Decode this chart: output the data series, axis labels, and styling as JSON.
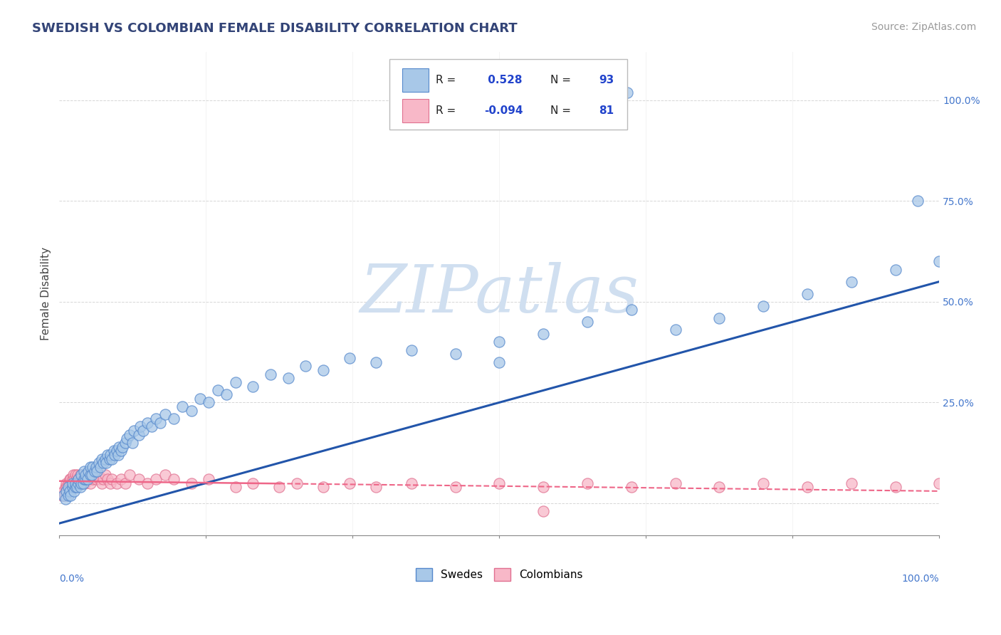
{
  "title": "SWEDISH VS COLOMBIAN FEMALE DISABILITY CORRELATION CHART",
  "source": "Source: ZipAtlas.com",
  "ylabel": "Female Disability",
  "r_swedish": 0.528,
  "n_swedish": 93,
  "r_colombian": -0.094,
  "n_colombian": 81,
  "blue_scatter_color": "#a8c8e8",
  "blue_scatter_edge": "#5588cc",
  "pink_scatter_color": "#f8b8c8",
  "pink_scatter_edge": "#e07090",
  "blue_line_color": "#2255aa",
  "pink_line_color": "#ee6688",
  "title_color": "#334477",
  "source_color": "#999999",
  "axis_label_color": "#4477cc",
  "legend_r_color": "#2244cc",
  "watermark_color": "#d0dff0",
  "xlim": [
    0.0,
    1.0
  ],
  "ylim": [
    -0.08,
    1.12
  ],
  "sw_x": [
    0.005,
    0.007,
    0.008,
    0.01,
    0.01,
    0.012,
    0.013,
    0.015,
    0.015,
    0.017,
    0.018,
    0.018,
    0.02,
    0.022,
    0.022,
    0.024,
    0.025,
    0.025,
    0.027,
    0.028,
    0.028,
    0.03,
    0.03,
    0.032,
    0.033,
    0.035,
    0.035,
    0.037,
    0.038,
    0.04,
    0.042,
    0.043,
    0.045,
    0.047,
    0.048,
    0.05,
    0.052,
    0.053,
    0.055,
    0.057,
    0.058,
    0.06,
    0.062,
    0.063,
    0.065,
    0.067,
    0.068,
    0.07,
    0.072,
    0.075,
    0.077,
    0.08,
    0.083,
    0.085,
    0.09,
    0.092,
    0.095,
    0.1,
    0.105,
    0.11,
    0.115,
    0.12,
    0.13,
    0.14,
    0.15,
    0.16,
    0.17,
    0.18,
    0.19,
    0.2,
    0.22,
    0.24,
    0.26,
    0.28,
    0.3,
    0.33,
    0.36,
    0.4,
    0.45,
    0.5,
    0.55,
    0.6,
    0.65,
    0.7,
    0.75,
    0.8,
    0.85,
    0.9,
    0.95,
    1.0,
    0.645,
    0.975,
    0.5
  ],
  "sw_y": [
    0.02,
    0.01,
    0.03,
    0.02,
    0.04,
    0.03,
    0.02,
    0.04,
    0.05,
    0.03,
    0.04,
    0.05,
    0.04,
    0.05,
    0.06,
    0.04,
    0.05,
    0.07,
    0.05,
    0.06,
    0.08,
    0.06,
    0.07,
    0.06,
    0.08,
    0.07,
    0.09,
    0.07,
    0.09,
    0.08,
    0.09,
    0.08,
    0.1,
    0.09,
    0.11,
    0.1,
    0.11,
    0.1,
    0.12,
    0.11,
    0.12,
    0.11,
    0.13,
    0.12,
    0.13,
    0.12,
    0.14,
    0.13,
    0.14,
    0.15,
    0.16,
    0.17,
    0.15,
    0.18,
    0.17,
    0.19,
    0.18,
    0.2,
    0.19,
    0.21,
    0.2,
    0.22,
    0.21,
    0.24,
    0.23,
    0.26,
    0.25,
    0.28,
    0.27,
    0.3,
    0.29,
    0.32,
    0.31,
    0.34,
    0.33,
    0.36,
    0.35,
    0.38,
    0.37,
    0.4,
    0.42,
    0.45,
    0.48,
    0.43,
    0.46,
    0.49,
    0.52,
    0.55,
    0.58,
    0.6,
    1.02,
    0.75,
    0.35
  ],
  "co_x": [
    0.003,
    0.005,
    0.006,
    0.007,
    0.008,
    0.008,
    0.009,
    0.01,
    0.01,
    0.011,
    0.012,
    0.012,
    0.013,
    0.013,
    0.014,
    0.015,
    0.015,
    0.016,
    0.016,
    0.017,
    0.018,
    0.018,
    0.019,
    0.02,
    0.021,
    0.022,
    0.023,
    0.024,
    0.025,
    0.026,
    0.027,
    0.028,
    0.029,
    0.03,
    0.032,
    0.033,
    0.035,
    0.037,
    0.038,
    0.04,
    0.042,
    0.044,
    0.046,
    0.048,
    0.05,
    0.052,
    0.055,
    0.058,
    0.06,
    0.065,
    0.07,
    0.075,
    0.08,
    0.09,
    0.1,
    0.11,
    0.12,
    0.13,
    0.15,
    0.17,
    0.2,
    0.22,
    0.25,
    0.27,
    0.3,
    0.33,
    0.36,
    0.4,
    0.45,
    0.5,
    0.55,
    0.6,
    0.65,
    0.7,
    0.75,
    0.8,
    0.85,
    0.9,
    0.95,
    1.0,
    0.55
  ],
  "co_y": [
    0.02,
    0.03,
    0.02,
    0.04,
    0.03,
    0.05,
    0.04,
    0.03,
    0.05,
    0.04,
    0.06,
    0.05,
    0.04,
    0.06,
    0.05,
    0.04,
    0.06,
    0.05,
    0.07,
    0.06,
    0.05,
    0.07,
    0.06,
    0.05,
    0.07,
    0.06,
    0.05,
    0.07,
    0.06,
    0.05,
    0.07,
    0.06,
    0.05,
    0.06,
    0.07,
    0.06,
    0.05,
    0.07,
    0.06,
    0.07,
    0.06,
    0.07,
    0.06,
    0.05,
    0.06,
    0.07,
    0.06,
    0.05,
    0.06,
    0.05,
    0.06,
    0.05,
    0.07,
    0.06,
    0.05,
    0.06,
    0.07,
    0.06,
    0.05,
    0.06,
    0.04,
    0.05,
    0.04,
    0.05,
    0.04,
    0.05,
    0.04,
    0.05,
    0.04,
    0.05,
    0.04,
    0.05,
    0.04,
    0.05,
    0.04,
    0.05,
    0.04,
    0.05,
    0.04,
    0.05,
    -0.02
  ]
}
